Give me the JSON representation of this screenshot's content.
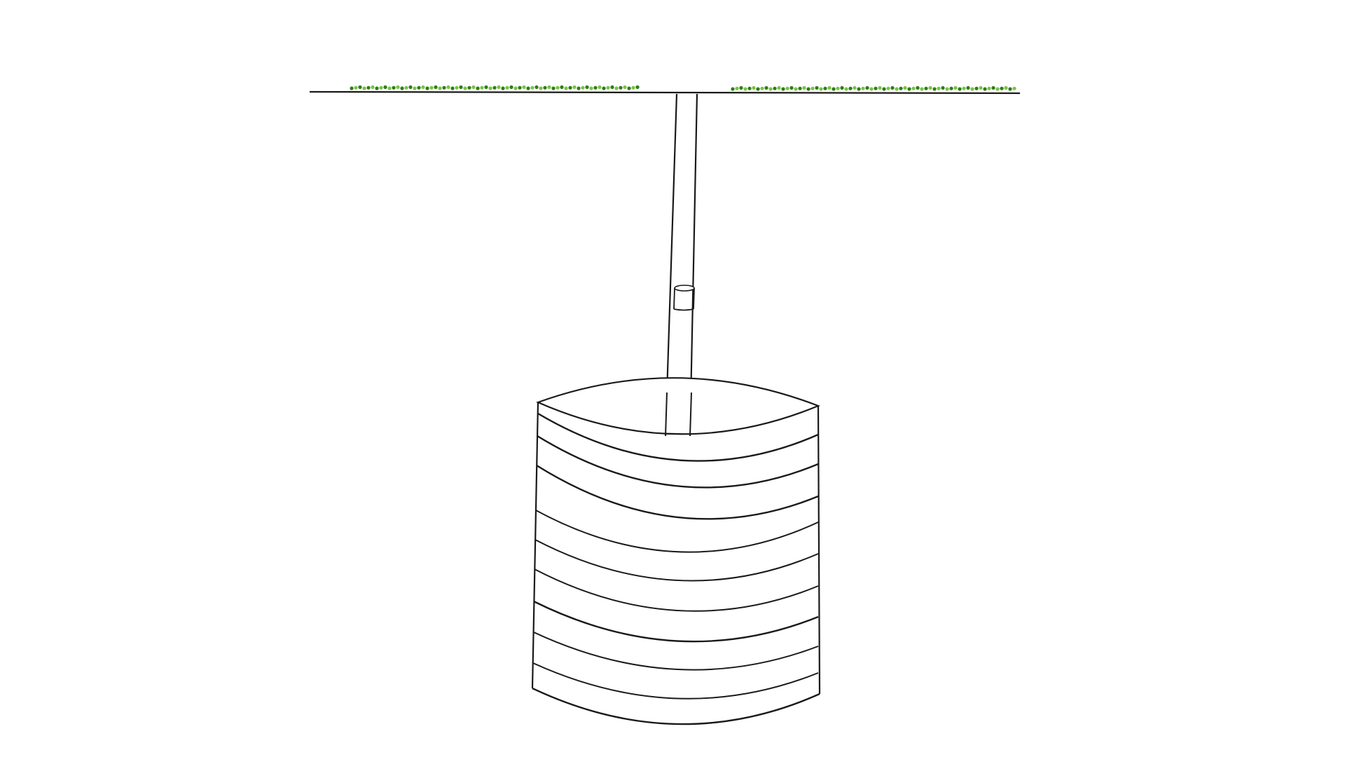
{
  "diagram": {
    "subject": "pipe-to-rings-structure",
    "text_labels": [],
    "layer_count": 10,
    "colors": {
      "background": "#ffffff",
      "stroke": "#1a1a1a",
      "vegetation_dark": "#2e7d1a",
      "vegetation_light": "#7cc242"
    }
  }
}
